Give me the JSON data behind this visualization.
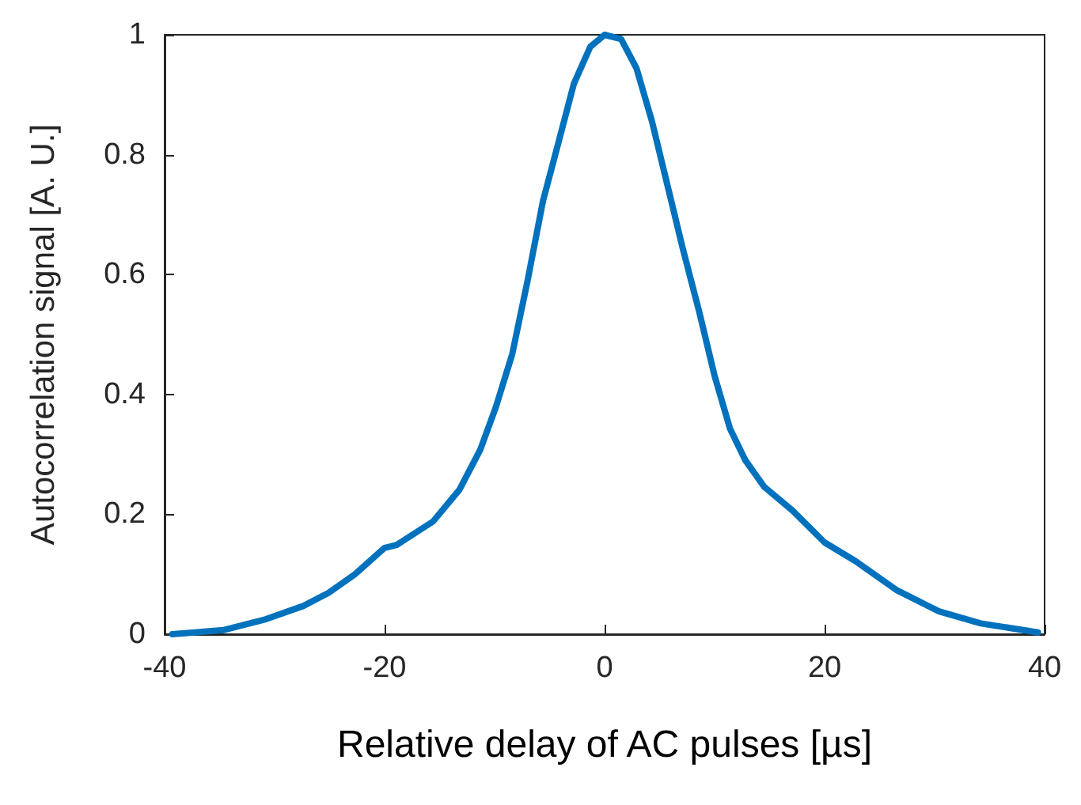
{
  "chart_data": {
    "type": "line",
    "xlabel": "Relative delay of AC pulses [µs]",
    "ylabel": "Autocorrelation signal [A. U.]",
    "xlim": [
      -40,
      40
    ],
    "xticks": [
      -40,
      -20,
      0,
      20,
      40
    ],
    "ylim": [
      0,
      1
    ],
    "yticks": [
      0,
      0.2,
      0.4,
      0.6,
      0.8,
      1
    ],
    "grid": false,
    "marker": "none",
    "line_style": "solid",
    "series": [
      {
        "color": "#0072bd",
        "x": [
          -39.3,
          -34.6,
          -30.8,
          -27.4,
          -25.1,
          -22.7,
          -20,
          -18.9,
          -15.6,
          -13.2,
          -11.3,
          -9.9,
          -8.4,
          -7.0,
          -5.6,
          -4.2,
          -2.8,
          -1.3,
          0,
          1.5,
          2.9,
          4.3,
          5.7,
          7.1,
          8.6,
          10.0,
          11.4,
          12.8,
          14.5,
          17.1,
          20,
          22.8,
          26.6,
          30.4,
          34.2,
          39.4
        ],
        "values": [
          0,
          0.007,
          0.025,
          0.047,
          0.069,
          0.1,
          0.144,
          0.149,
          0.188,
          0.241,
          0.308,
          0.378,
          0.467,
          0.59,
          0.723,
          0.82,
          0.918,
          0.98,
          1.0,
          0.993,
          0.944,
          0.856,
          0.75,
          0.644,
          0.538,
          0.431,
          0.343,
          0.29,
          0.246,
          0.206,
          0.153,
          0.122,
          0.073,
          0.038,
          0.018,
          0.003
        ]
      }
    ]
  }
}
